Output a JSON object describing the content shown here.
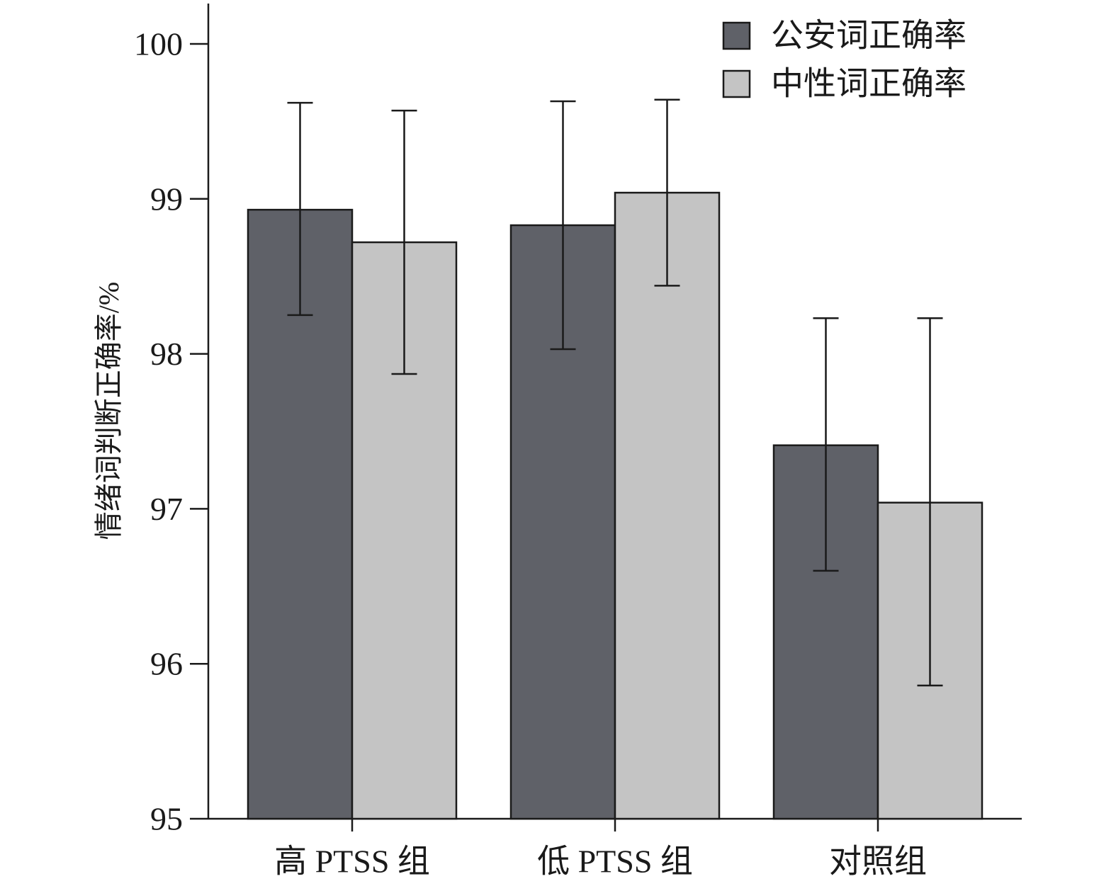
{
  "chart_data": {
    "type": "bar",
    "title": "",
    "xlabel": "",
    "ylabel": "情绪词判断正确率/%",
    "ylim": [
      95,
      100
    ],
    "yticks": [
      95,
      96,
      97,
      98,
      99,
      100
    ],
    "categories": [
      "高 PTSS 组",
      "低 PTSS 组",
      "对照组"
    ],
    "series": [
      {
        "name": "公安词正确率",
        "color": "#5f6168",
        "values": [
          98.93,
          98.83,
          97.41
        ],
        "err_low": [
          98.25,
          98.03,
          96.6
        ],
        "err_high": [
          99.62,
          99.63,
          98.23
        ]
      },
      {
        "name": "中性词正确率",
        "color": "#c4c4c4",
        "values": [
          98.72,
          99.04,
          97.04
        ],
        "err_low": [
          97.87,
          98.44,
          95.86
        ],
        "err_high": [
          99.57,
          99.64,
          98.23
        ]
      }
    ],
    "legend_position": "top-right",
    "grid": false
  }
}
